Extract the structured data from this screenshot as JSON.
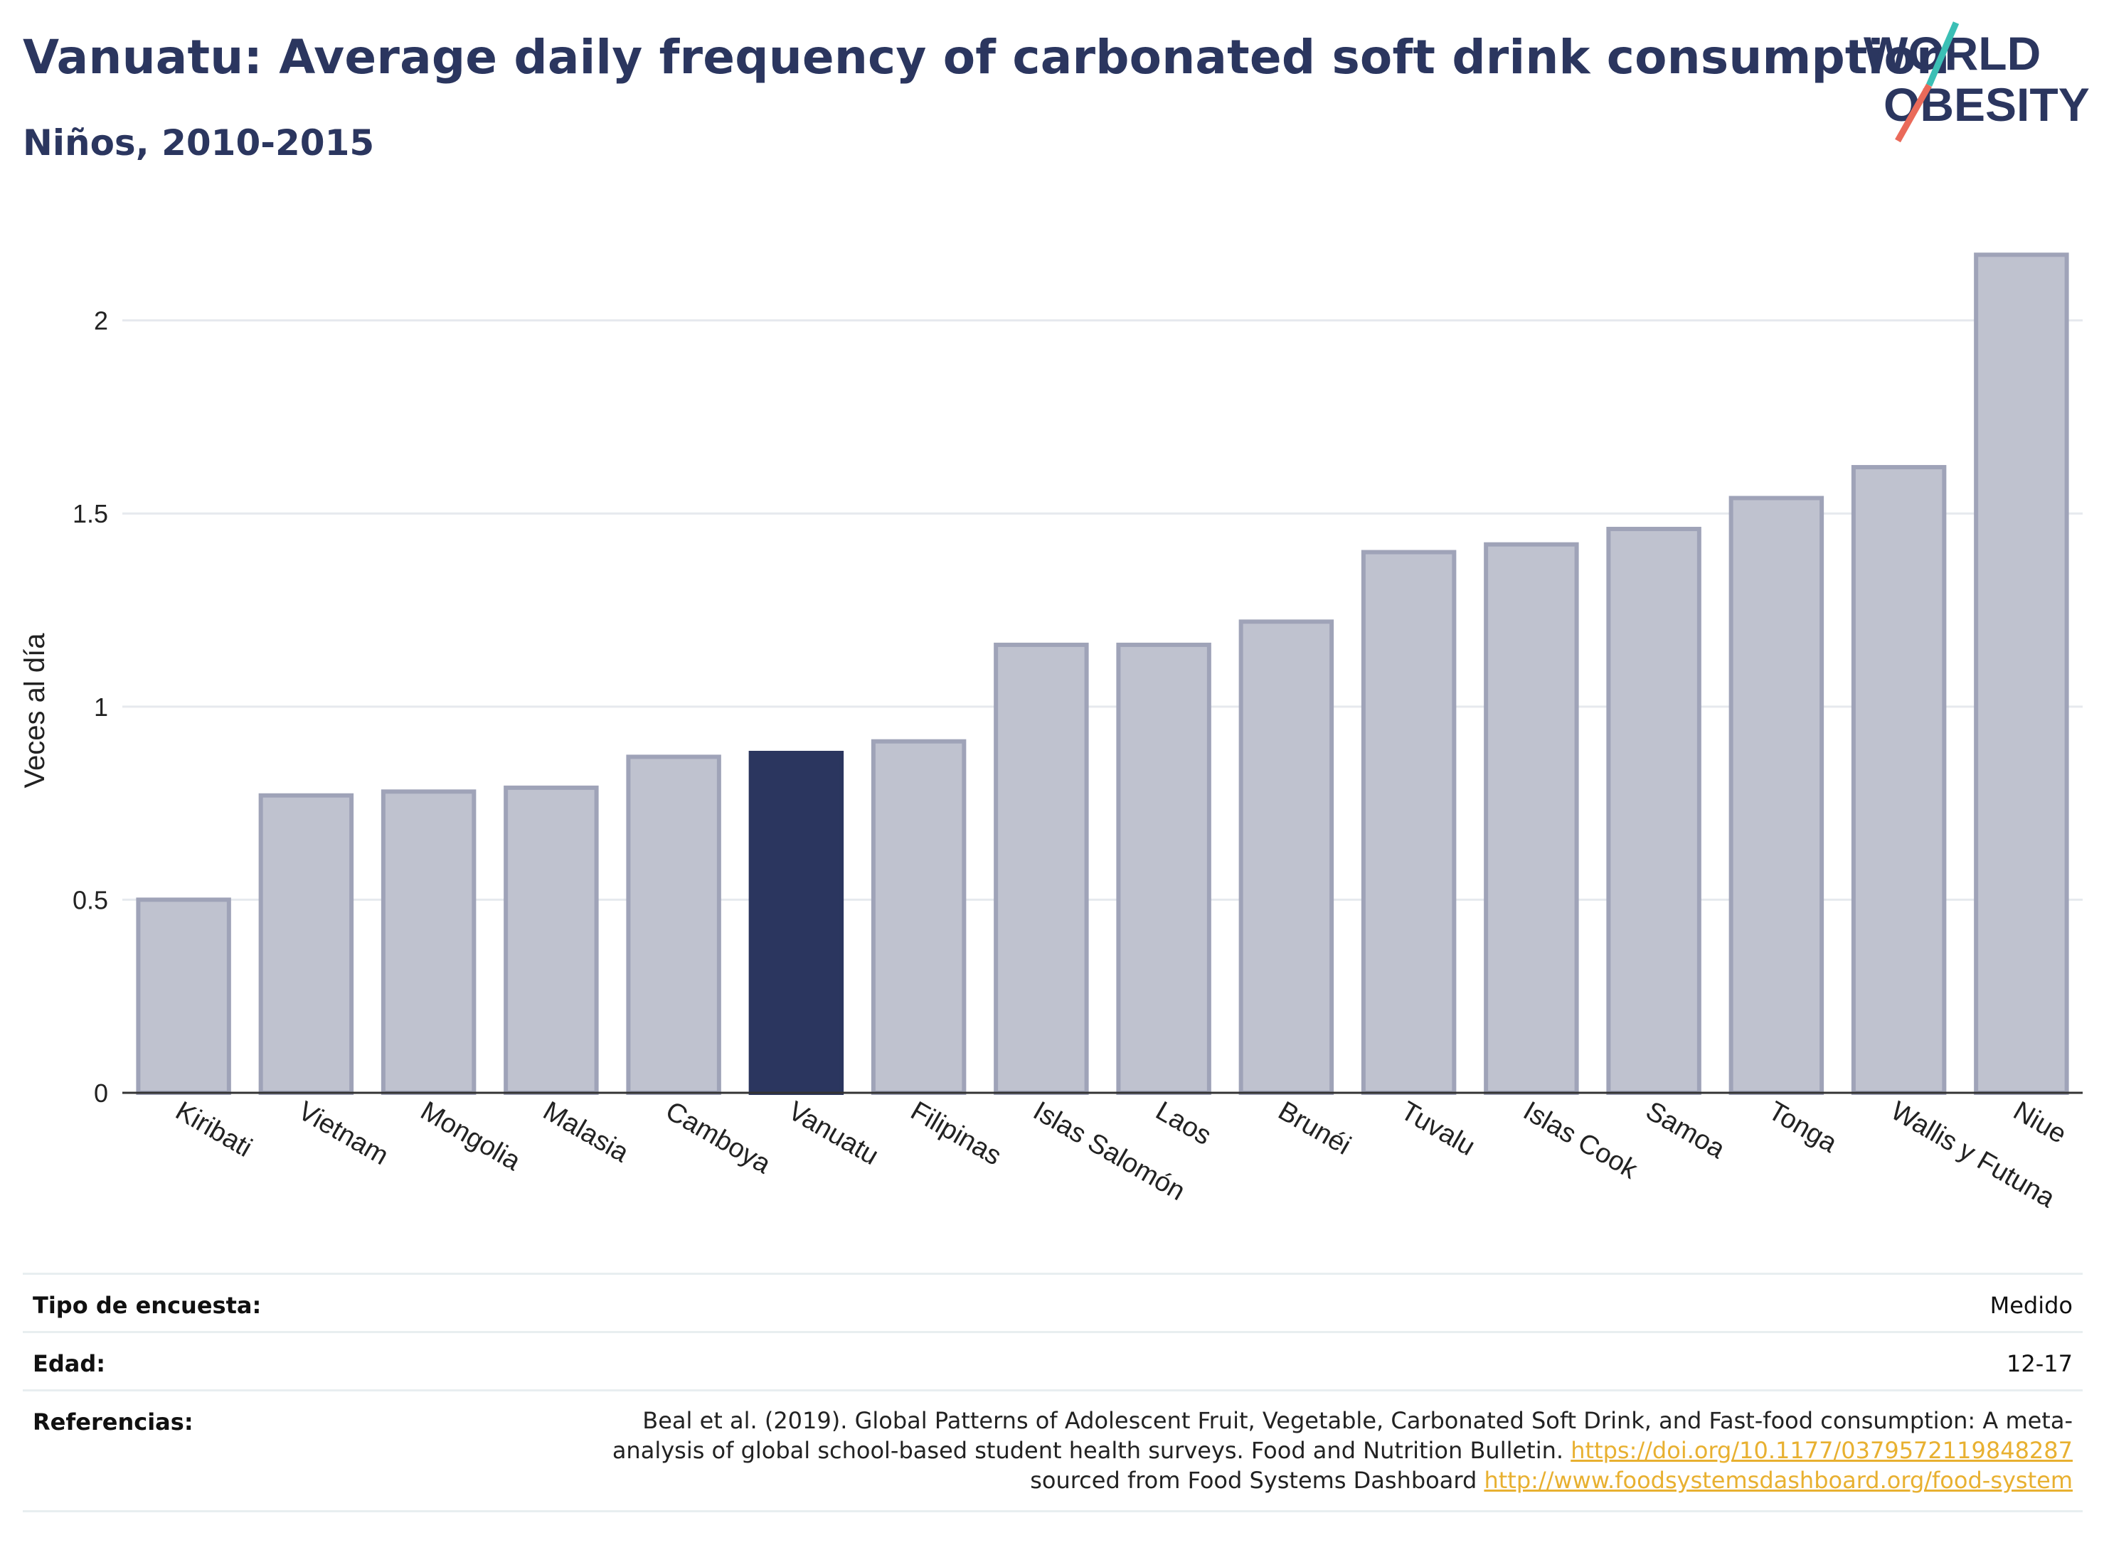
{
  "header": {
    "title": "Vanuatu: Average daily frequency of carbonated soft drink consumption",
    "subtitle": "Niños, 2010-2015"
  },
  "logo": {
    "line1": "WORLD",
    "line2": "OBESITY"
  },
  "colors": {
    "highlight": "#2b365f",
    "bar": "#bfc2cf",
    "bar_edge": "#9fa3b8",
    "grid": "#e6e9ee",
    "title": "#2b365f",
    "link": "#e8b030"
  },
  "chart_data": {
    "type": "bar",
    "categories": [
      "Kiribati",
      "Vietnam",
      "Mongolia",
      "Malasia",
      "Camboya",
      "Vanuatu",
      "Filipinas",
      "Islas Salomón",
      "Laos",
      "Brunéi",
      "Tuvalu",
      "Islas Cook",
      "Samoa",
      "Tonga",
      "Wallis y Futuna",
      "Niue"
    ],
    "values": [
      0.5,
      0.77,
      0.78,
      0.79,
      0.87,
      0.88,
      0.91,
      1.16,
      1.16,
      1.22,
      1.4,
      1.42,
      1.46,
      1.54,
      1.62,
      2.17
    ],
    "highlight": "Vanuatu",
    "ylabel": "Veces al día",
    "xlabel": "",
    "ylim": [
      0,
      2.2
    ],
    "yticks": [
      0,
      0.5,
      1,
      1.5,
      2
    ],
    "ytick_labels": [
      "0",
      "0.5",
      "1",
      "1.5",
      "2"
    ],
    "grid": true,
    "legend": "none"
  },
  "meta": {
    "survey_label": "Tipo de encuesta:",
    "survey_value": "Medido",
    "age_label": "Edad:",
    "age_value": "12-17",
    "refs_label": "Referencias:",
    "refs_text_1": "Beal et al. (2019). Global Patterns of Adolescent Fruit, Vegetable, Carbonated Soft Drink, and Fast-food consumption: A meta-analysis of global school-based student health surveys. Food and Nutrition Bulletin. ",
    "refs_link_1": "https://doi.org/10.1177/0379572119848287",
    "refs_text_2": " sourced from Food Systems Dashboard ",
    "refs_link_2": "http://www.foodsystemsdashboard.org/food-system"
  }
}
